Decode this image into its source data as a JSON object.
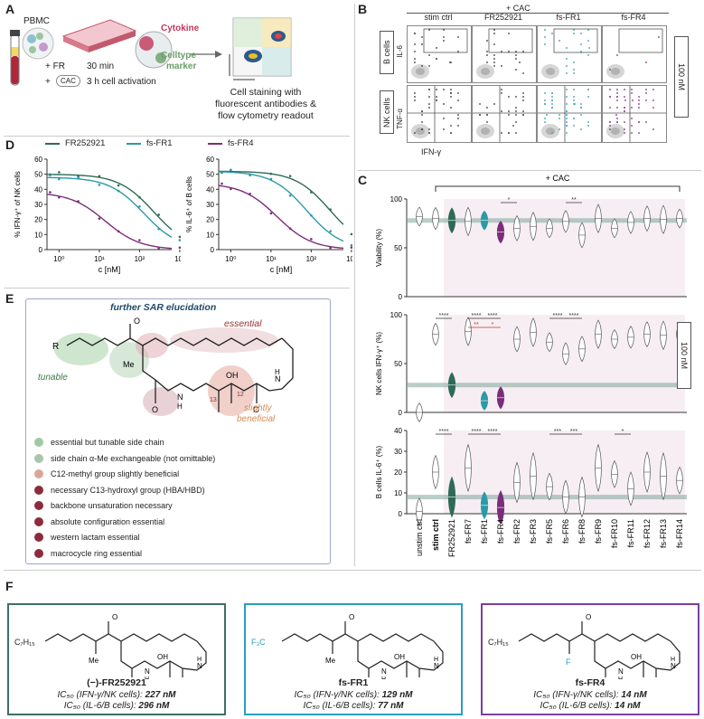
{
  "panels": {
    "A": "A",
    "B": "B",
    "C": "C",
    "D": "D",
    "E": "E",
    "F": "F"
  },
  "panelA": {
    "pbmc": "PBMC",
    "fr_line": "+ FR",
    "fr_time": "30 min",
    "cac_line": "+",
    "cac_box": "CAC",
    "cac_time": "3 h cell activation",
    "cytokine": "Cytokine",
    "celltype": "Celltype",
    "marker": "marker",
    "caption": [
      "Cell staining with",
      "fluorescent antibodies &",
      "flow cytometry readout"
    ],
    "colors": {
      "cytokine": "#c0365b",
      "celltype": "#6a9e66"
    }
  },
  "panelB": {
    "top_label": "+ CAC",
    "columns": [
      "stim ctrl",
      "FR252921",
      "fs-FR1",
      "fs-FR4"
    ],
    "rows": [
      "B cells",
      "NK cells"
    ],
    "y_labels": [
      "IL-6",
      "TNF-α"
    ],
    "x_label": "IFN-γ",
    "side_label": "100 nM"
  },
  "panelD": {
    "legend": [
      {
        "name": "FR252921",
        "color": "#2e6b56"
      },
      {
        "name": "fs-FR1",
        "color": "#2a9aa8"
      },
      {
        "name": "fs-FR4",
        "color": "#7b2d7a"
      }
    ],
    "chart_left": {
      "ylabel": "% IFN-γ⁺ of NK cells",
      "xlabel": "c [nM]",
      "yticks": [
        "0",
        "10",
        "20",
        "30",
        "40",
        "50",
        "60"
      ],
      "xticks": [
        "10⁰",
        "10¹",
        "10²",
        "10³"
      ]
    },
    "chart_right": {
      "ylabel": "% IL-6⁺ of B cells",
      "xlabel": "c [nM]",
      "yticks": [
        "0",
        "10",
        "20",
        "30",
        "40",
        "50",
        "60"
      ],
      "xticks": [
        "10⁰",
        "10¹",
        "10²",
        "10³"
      ]
    }
  },
  "chart_data": [
    {
      "type": "line",
      "x_scale": "log",
      "xlabel": "c [nM]",
      "ylabel": "% IFN-γ⁺ of NK cells",
      "ylim": [
        0,
        60
      ],
      "series": [
        {
          "name": "FR252921",
          "ic50": 227,
          "top": 50,
          "bottom": 0
        },
        {
          "name": "fs-FR1",
          "ic50": 129,
          "top": 48,
          "bottom": 0
        },
        {
          "name": "fs-FR4",
          "ic50": 14,
          "top": 38,
          "bottom": 0
        }
      ]
    },
    {
      "type": "line",
      "x_scale": "log",
      "xlabel": "c [nM]",
      "ylabel": "% IL-6⁺ of B cells",
      "ylim": [
        0,
        60
      ],
      "series": [
        {
          "name": "FR252921",
          "ic50": 296,
          "top": 52,
          "bottom": 0
        },
        {
          "name": "fs-FR1",
          "ic50": 77,
          "top": 52,
          "bottom": 0
        },
        {
          "name": "fs-FR4",
          "ic50": 14,
          "top": 44,
          "bottom": 0
        }
      ]
    },
    {
      "type": "violin",
      "title": "+ CAC",
      "categories": [
        "unstim ctrl",
        "stim ctrl",
        "FR252921",
        "fs-FR7",
        "fs-FR1",
        "fs-FR4",
        "fs-FR2",
        "fs-FR3",
        "fs-FR5",
        "fs-FR6",
        "fs-FR8",
        "fs-FR9",
        "fs-FR10",
        "fs-FR11",
        "fs-FR12",
        "fs-FR13",
        "fs-FR14"
      ],
      "panels": [
        {
          "ylabel": "Viability (%)",
          "ylim": [
            0,
            100
          ],
          "ref": 78,
          "medians": [
            82,
            80,
            78,
            77,
            78,
            66,
            70,
            72,
            70,
            77,
            63,
            80,
            70,
            76,
            80,
            79,
            80
          ],
          "sig": [
            {
              "text": "*",
              "from": "fs-FR4",
              "to": "fs-FR2"
            },
            {
              "text": "**",
              "from": "fs-FR6",
              "to": "fs-FR8"
            }
          ]
        },
        {
          "ylabel": "NK cells IFN-γ⁺ (%)",
          "ylim": [
            0,
            100
          ],
          "ref": 28,
          "medians": [
            0,
            80,
            28,
            83,
            12,
            15,
            75,
            82,
            72,
            60,
            65,
            80,
            75,
            77,
            80,
            79,
            80
          ],
          "sig": [
            {
              "text": "****",
              "from": "stim ctrl",
              "to": "FR252921"
            },
            {
              "text": "****",
              "from": "fs-FR7",
              "to": "fs-FR1"
            },
            {
              "text": "****",
              "from": "fs-FR1",
              "to": "fs-FR4"
            },
            {
              "text": "**",
              "from": "fs-FR7",
              "to": "fs-FR1"
            },
            {
              "text": "*",
              "from": "fs-FR1",
              "to": "fs-FR4"
            },
            {
              "text": "****",
              "from": "fs-FR5",
              "to": "fs-FR6"
            },
            {
              "text": "****",
              "from": "fs-FR6",
              "to": "fs-FR8"
            }
          ]
        },
        {
          "ylabel": "B cells IL-6⁺ (%)",
          "ylim": [
            0,
            40
          ],
          "ref": 8,
          "medians": [
            1,
            20,
            8,
            22,
            4,
            3,
            15,
            18,
            13,
            8,
            8,
            22,
            19,
            12,
            20,
            18,
            16
          ],
          "sig": [
            {
              "text": "****",
              "from": "stim ctrl",
              "to": "FR252921"
            },
            {
              "text": "****",
              "from": "fs-FR7",
              "to": "fs-FR1"
            },
            {
              "text": "****",
              "from": "fs-FR1",
              "to": "fs-FR4"
            },
            {
              "text": "***",
              "from": "fs-FR5",
              "to": "fs-FR6"
            },
            {
              "text": "***",
              "from": "fs-FR6",
              "to": "fs-FR8"
            },
            {
              "text": "*",
              "from": "fs-FR10",
              "to": "fs-FR11"
            }
          ]
        }
      ],
      "side_label": "100 nM"
    }
  ],
  "panelC": {
    "top_label": "+ CAC",
    "yticks_100": [
      "0",
      "50",
      "100"
    ],
    "yticks_40": [
      "0",
      "10",
      "20",
      "30",
      "40"
    ],
    "side_label": "100 nM"
  },
  "panelE": {
    "title": "further SAR elucidation",
    "essential": "essential",
    "tunable": "tunable",
    "slightly": "slightly",
    "beneficial": "beneficial",
    "atom_labels": {
      "r": "R",
      "me": "Me",
      "o": "O",
      "oh": "OH",
      "n": "N",
      "h": "H",
      "c12": "12",
      "c13": "13"
    },
    "items": [
      {
        "text": "essential but tunable side chain",
        "color": "#9fc9a3"
      },
      {
        "text": "side chain α-Me exchangeable (not omittable)",
        "color": "#a9c6ad"
      },
      {
        "text": "C12-methyl group slightly beneficial",
        "color": "#d9a69a"
      },
      {
        "text": "necessary C13-hydroxyl group (HBA/HBD)",
        "color": "#8b2c3c"
      },
      {
        "text": "backbone unsaturation necessary",
        "color": "#8b2c3c"
      },
      {
        "text": "absolute configuration essential",
        "color": "#8b2c3c"
      },
      {
        "text": "western lactam essential",
        "color": "#8b2c3c"
      },
      {
        "text": "macrocycle ring essential",
        "color": "#8b2c3c"
      }
    ]
  },
  "panelF": {
    "compounds": [
      {
        "name": "(−)-FR252921",
        "ic50_nk": "227 nM",
        "ic50_b": "296 nM",
        "color": "#3d6f66",
        "sub": "C₇H₁₅"
      },
      {
        "name": "fs-FR1",
        "ic50_nk": "129 nM",
        "ic50_b": "77 nM",
        "color": "#2a9ec0",
        "sub": "F₃C"
      },
      {
        "name": "fs-FR4",
        "ic50_nk": "14 nM",
        "ic50_b": "14 nM",
        "color": "#7b3fa0",
        "sub": "C₇H₁₅"
      }
    ],
    "ic_label_nk": "IC₅₀ (IFN-γ/NK cells): ",
    "ic_label_b": "IC₅₀ (IL-6/B cells): ",
    "atom_labels": {
      "o": "O",
      "oh": "OH",
      "n": "N",
      "h": "H",
      "me": "Me",
      "f": "F"
    }
  }
}
